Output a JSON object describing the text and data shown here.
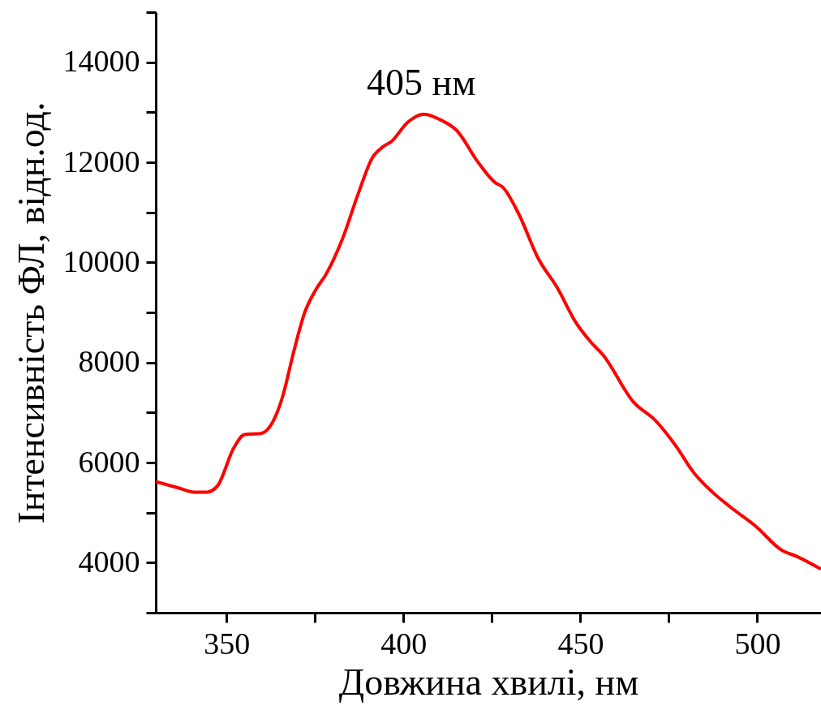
{
  "chart_data": {
    "type": "line",
    "xlabel": "Довжина хвилі, нм",
    "ylabel": "Інтенсивність ФЛ, відн.од.",
    "annotations": [
      {
        "text": "405 нм",
        "x": 405,
        "y": 12960
      }
    ],
    "x": [
      330,
      336.6,
      340.6,
      344.5,
      347.5,
      352.1,
      355.1,
      359.7,
      362.9,
      365.9,
      368.9,
      372.1,
      375.1,
      378.1,
      382.7,
      387.3,
      391.2,
      394.2,
      396.5,
      401.2,
      405.8,
      410.4,
      415,
      421.2,
      425.8,
      428.1,
      432.7,
      438,
      443.5,
      448.8,
      452.8,
      456.5,
      465,
      471.2,
      477.2,
      481.8,
      487.3,
      492.6,
      499.5,
      507.1,
      511,
      518
    ],
    "series": [
      {
        "color": "#ff0000",
        "values": [
          5620,
          5490,
          5410,
          5410,
          5540,
          6300,
          6560,
          6580,
          6790,
          7330,
          8190,
          9000,
          9440,
          9760,
          10460,
          11390,
          12090,
          12310,
          12410,
          12800,
          12960,
          12850,
          12640,
          11990,
          11600,
          11500,
          10950,
          10090,
          9490,
          8790,
          8420,
          8140,
          7210,
          6840,
          6310,
          5820,
          5410,
          5100,
          4730,
          4240,
          4130,
          3870
        ]
      }
    ],
    "xlim": [
      330,
      518
    ],
    "xticks": [
      350,
      {
        "value": 375,
        "label": null
      },
      400,
      {
        "value": 425,
        "label": null
      },
      450,
      {
        "value": 475,
        "label": null
      },
      500
    ],
    "ylim": [
      3000,
      15000
    ],
    "yticks": [
      {
        "value": 3000,
        "label": null
      },
      4000,
      {
        "value": 5000,
        "label": null
      },
      6000,
      {
        "value": 7000,
        "label": null
      },
      8000,
      {
        "value": 9000,
        "label": null
      },
      10000,
      {
        "value": 11000,
        "label": null
      },
      12000,
      {
        "value": 13000,
        "label": null
      },
      14000,
      {
        "value": 15000,
        "label": null
      }
    ],
    "grid": false,
    "marker": "none",
    "line_style": "solid"
  }
}
